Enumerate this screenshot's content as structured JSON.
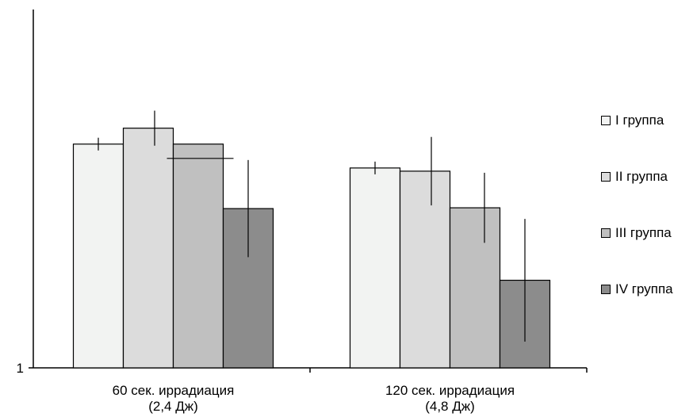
{
  "chart_data": {
    "type": "bar",
    "categories": [
      [
        "60 сек. иррадиация",
        "(2,4 Дж)"
      ],
      [
        "120 сек. иррадиация",
        "(4,8 Дж)"
      ]
    ],
    "series": [
      {
        "name": "I группа",
        "color": "#f2f3f2",
        "values": [
          3.81,
          3.51
        ],
        "error": [
          0.08,
          0.08
        ]
      },
      {
        "name": "II группа",
        "color": "#dcdcdc",
        "values": [
          4.01,
          3.47
        ],
        "error": [
          0.22,
          0.43
        ]
      },
      {
        "name": "III группа",
        "color": "#c0c0c0",
        "values": [
          3.81,
          3.01
        ],
        "error": [
          0.0,
          0.44
        ]
      },
      {
        "name": "IV группа",
        "color": "#8c8c8c",
        "values": [
          3.0,
          2.1
        ],
        "error": [
          0.61,
          0.77
        ]
      }
    ],
    "yticks": [
      1
    ],
    "ylim": [
      1,
      5.5
    ],
    "grid": false,
    "legend": "right",
    "title": "",
    "xlabel": "",
    "ylabel": ""
  }
}
